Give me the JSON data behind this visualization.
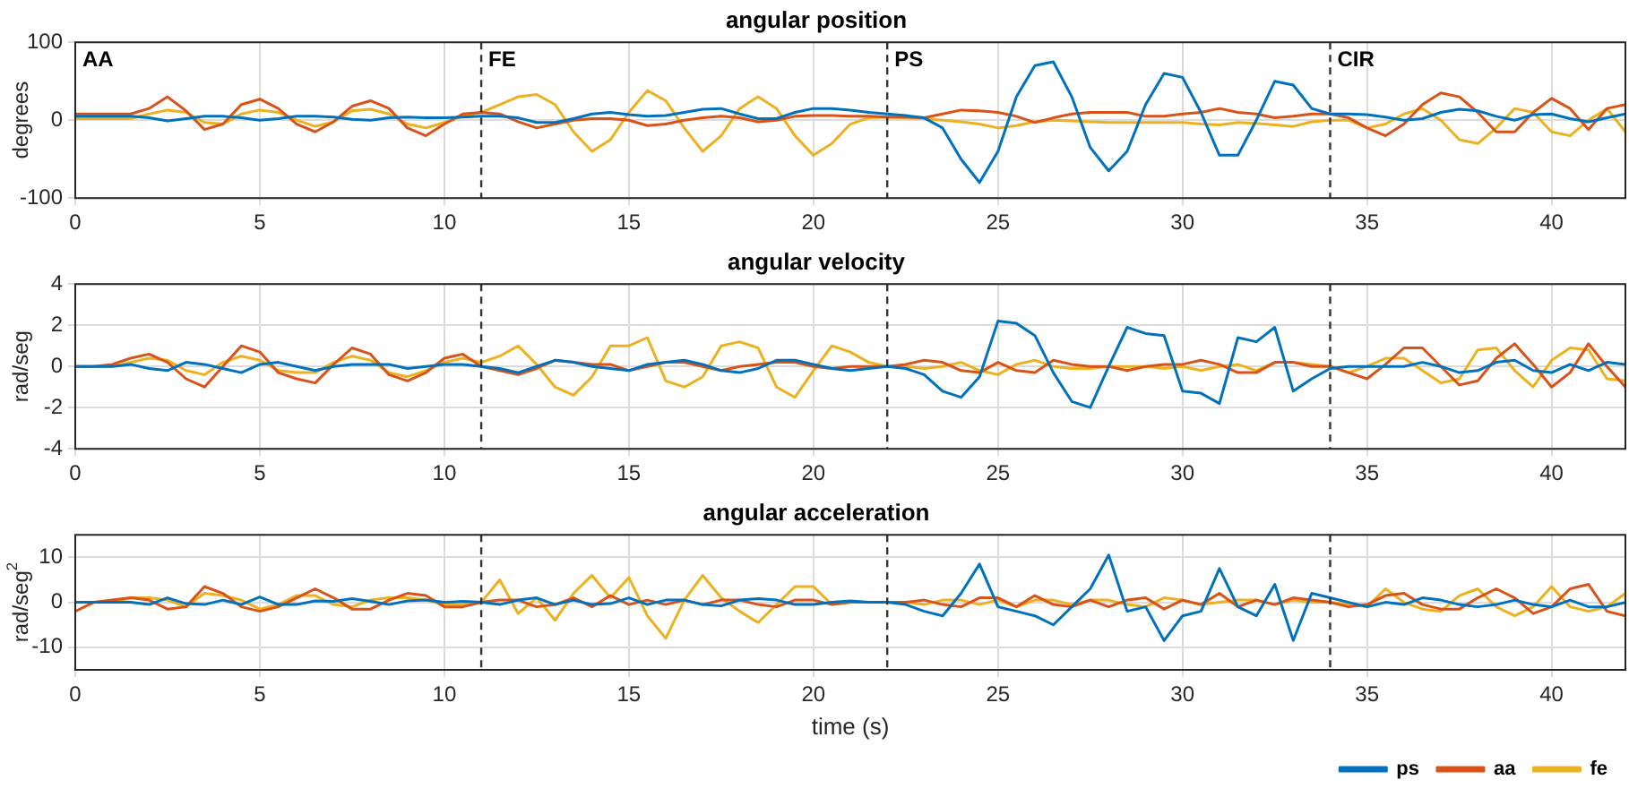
{
  "chart_data": [
    {
      "type": "line",
      "title": "angular position",
      "ylabel": "degrees",
      "marker": "none",
      "grid": true,
      "x": [
        0,
        0.5,
        1,
        1.5,
        2,
        2.5,
        3,
        3.5,
        4,
        4.5,
        5,
        5.5,
        6,
        6.5,
        7,
        7.5,
        8,
        8.5,
        9,
        9.5,
        10,
        10.5,
        11,
        11.5,
        12,
        12.5,
        13,
        13.5,
        14,
        14.5,
        15,
        15.5,
        16,
        16.5,
        17,
        17.5,
        18,
        18.5,
        19,
        19.5,
        20,
        20.5,
        21,
        21.5,
        22,
        22.5,
        23,
        23.5,
        24,
        24.5,
        25,
        25.5,
        26,
        26.5,
        27,
        27.5,
        28,
        28.5,
        29,
        29.5,
        30,
        30.5,
        31,
        31.5,
        32,
        32.5,
        33,
        33.5,
        34,
        34.5,
        35,
        35.5,
        36,
        36.5,
        37,
        37.5,
        38,
        38.5,
        39,
        39.5,
        40,
        40.5,
        41,
        41.5,
        42
      ],
      "series": [
        {
          "color": "#0072bd",
          "values": [
            5,
            5,
            5,
            5,
            3,
            -1,
            2,
            5,
            5,
            3,
            0,
            2,
            5,
            5,
            4,
            1,
            0,
            3,
            4,
            3,
            3,
            4,
            5,
            5,
            3,
            -3,
            -3,
            2,
            8,
            10,
            7,
            5,
            6,
            10,
            14,
            15,
            8,
            2,
            2,
            10,
            15,
            15,
            13,
            10,
            8,
            6,
            3,
            -10,
            -50,
            -80,
            -40,
            30,
            70,
            75,
            30,
            -35,
            -65,
            -40,
            20,
            60,
            55,
            10,
            -45,
            -45,
            0,
            50,
            45,
            15,
            8,
            8,
            7,
            4,
            0,
            2,
            10,
            14,
            12,
            5,
            0,
            7,
            8,
            2,
            -2,
            3,
            8
          ]
        },
        {
          "color": "#d95319",
          "values": [
            8,
            8,
            8,
            8,
            15,
            30,
            12,
            -12,
            -5,
            20,
            27,
            15,
            -5,
            -15,
            -2,
            18,
            25,
            15,
            -10,
            -20,
            -5,
            8,
            10,
            8,
            -2,
            -10,
            -5,
            0,
            2,
            2,
            0,
            -7,
            -5,
            0,
            3,
            5,
            3,
            -2,
            0,
            5,
            6,
            6,
            5,
            5,
            4,
            4,
            3,
            8,
            13,
            12,
            10,
            5,
            -3,
            3,
            8,
            10,
            10,
            10,
            5,
            5,
            8,
            10,
            15,
            10,
            8,
            3,
            5,
            8,
            8,
            3,
            -10,
            -20,
            -5,
            20,
            35,
            30,
            10,
            -15,
            -15,
            10,
            28,
            15,
            -12,
            15,
            20
          ]
        },
        {
          "color": "#edb120",
          "values": [
            2,
            2,
            2,
            2,
            8,
            13,
            10,
            -3,
            -5,
            8,
            13,
            10,
            0,
            -8,
            -2,
            12,
            14,
            8,
            -5,
            -10,
            -3,
            5,
            10,
            20,
            30,
            33,
            20,
            -15,
            -40,
            -25,
            10,
            38,
            25,
            -10,
            -40,
            -20,
            15,
            30,
            15,
            -20,
            -45,
            -30,
            -5,
            3,
            4,
            3,
            2,
            0,
            -2,
            -5,
            -10,
            -7,
            -2,
            0,
            -1,
            -2,
            -3,
            -3,
            -3,
            -3,
            -3,
            -5,
            -6,
            -3,
            -4,
            -6,
            -8,
            -2,
            0,
            0,
            -10,
            -5,
            8,
            15,
            0,
            -25,
            -30,
            -10,
            15,
            10,
            -15,
            -20,
            0,
            15,
            -15
          ]
        }
      ],
      "xlim": [
        0,
        42
      ],
      "xticks": [
        0,
        5,
        10,
        15,
        20,
        25,
        30,
        35,
        40
      ],
      "ylim": [
        -100,
        100
      ],
      "yticks": [
        -100,
        0,
        100
      ],
      "ref_lines": [
        {
          "axis": "x",
          "value": 11,
          "label": "FE",
          "color": "#333333",
          "line_style": "dashed"
        },
        {
          "axis": "x",
          "value": 22,
          "label": "PS",
          "color": "#333333",
          "line_style": "dashed"
        },
        {
          "axis": "x",
          "value": 34,
          "label": "CIR",
          "color": "#333333",
          "line_style": "dashed"
        }
      ],
      "annotations": [
        "AA"
      ]
    },
    {
      "type": "line",
      "title": "angular velocity",
      "ylabel": "rad/seg",
      "marker": "none",
      "grid": true,
      "x": [
        0,
        0.5,
        1,
        1.5,
        2,
        2.5,
        3,
        3.5,
        4,
        4.5,
        5,
        5.5,
        6,
        6.5,
        7,
        7.5,
        8,
        8.5,
        9,
        9.5,
        10,
        10.5,
        11,
        11.5,
        12,
        12.5,
        13,
        13.5,
        14,
        14.5,
        15,
        15.5,
        16,
        16.5,
        17,
        17.5,
        18,
        18.5,
        19,
        19.5,
        20,
        20.5,
        21,
        21.5,
        22,
        22.5,
        23,
        23.5,
        24,
        24.5,
        25,
        25.5,
        26,
        26.5,
        27,
        27.5,
        28,
        28.5,
        29,
        29.5,
        30,
        30.5,
        31,
        31.5,
        32,
        32.5,
        33,
        33.5,
        34,
        34.5,
        35,
        35.5,
        36,
        36.5,
        37,
        37.5,
        38,
        38.5,
        39,
        39.5,
        40,
        40.5,
        41,
        41.5,
        42
      ],
      "series": [
        {
          "color": "#0072bd",
          "values": [
            0,
            0,
            0,
            0.1,
            -0.1,
            -0.2,
            0.2,
            0.1,
            -0.1,
            -0.3,
            0.1,
            0.2,
            0,
            -0.2,
            0,
            0.1,
            0.1,
            0.1,
            -0.1,
            0,
            0.1,
            0.1,
            0,
            -0.1,
            -0.3,
            0,
            0.3,
            0.2,
            0,
            -0.1,
            -0.2,
            0.1,
            0.2,
            0.3,
            0.1,
            -0.2,
            -0.3,
            -0.1,
            0.3,
            0.3,
            0.1,
            -0.1,
            -0.2,
            -0.1,
            0,
            -0.1,
            -0.4,
            -1.2,
            -1.5,
            -0.5,
            2.2,
            2.1,
            1.5,
            -0.3,
            -1.7,
            -2,
            0,
            1.9,
            1.6,
            1.5,
            -1.2,
            -1.3,
            -1.8,
            1.4,
            1.2,
            1.9,
            -1.2,
            -0.6,
            -0.1,
            0,
            0,
            0,
            0,
            0.2,
            0,
            -0.3,
            -0.2,
            0.2,
            0.3,
            -0.2,
            -0.3,
            0.1,
            -0.2,
            0.2,
            0.1
          ]
        },
        {
          "color": "#d95319",
          "values": [
            0,
            0,
            0.1,
            0.4,
            0.6,
            0.2,
            -0.6,
            -1,
            0,
            1,
            0.7,
            -0.3,
            -0.6,
            -0.8,
            0.1,
            0.9,
            0.6,
            -0.4,
            -0.7,
            -0.3,
            0.4,
            0.6,
            0,
            -0.2,
            -0.4,
            -0.1,
            0.3,
            0.2,
            0.1,
            0.1,
            -0.2,
            0,
            0.2,
            0.2,
            0,
            -0.2,
            0,
            0.1,
            0.2,
            0.2,
            0,
            -0.1,
            0,
            0,
            0,
            0.1,
            0.3,
            0.2,
            -0.2,
            -0.3,
            0.2,
            -0.2,
            -0.3,
            0.3,
            0.1,
            0,
            0,
            -0.2,
            0,
            0.1,
            0.1,
            0.3,
            0.1,
            -0.3,
            -0.3,
            0.2,
            0.2,
            0,
            0,
            -0.3,
            -0.6,
            0.1,
            0.9,
            0.9,
            0,
            -0.9,
            -0.7,
            0.4,
            1.1,
            0.1,
            -1,
            -0.3,
            1.1,
            0,
            -1
          ]
        },
        {
          "color": "#edb120",
          "values": [
            0,
            0,
            0,
            0.2,
            0.4,
            0.3,
            -0.2,
            -0.4,
            0.2,
            0.5,
            0.3,
            -0.2,
            -0.3,
            -0.3,
            0.2,
            0.5,
            0.3,
            -0.3,
            -0.5,
            -0.2,
            0.2,
            0.4,
            0.2,
            0.5,
            1,
            0.1,
            -1,
            -1.4,
            -0.5,
            1,
            1,
            1.4,
            -0.7,
            -1,
            -0.5,
            1,
            1.2,
            0.9,
            -1,
            -1.5,
            -0.2,
            1,
            0.7,
            0.2,
            0,
            0,
            -0.1,
            0,
            0.2,
            -0.2,
            -0.4,
            0.1,
            0.3,
            0,
            -0.1,
            -0.1,
            0,
            0,
            0,
            -0.1,
            0,
            -0.2,
            0,
            0.1,
            -0.2,
            0.2,
            0.2,
            0.1,
            0,
            -0.3,
            0,
            0.4,
            0.4,
            -0.2,
            -0.8,
            -0.6,
            0.8,
            0.9,
            -0.2,
            -1,
            0.3,
            0.9,
            0.8,
            -0.6,
            -0.7
          ]
        }
      ],
      "xlim": [
        0,
        42
      ],
      "xticks": [
        0,
        5,
        10,
        15,
        20,
        25,
        30,
        35,
        40
      ],
      "ylim": [
        -4,
        4
      ],
      "yticks": [
        -4,
        -2,
        0,
        2,
        4
      ],
      "ref_lines": [
        {
          "axis": "x",
          "value": 11,
          "color": "#333333",
          "line_style": "dashed"
        },
        {
          "axis": "x",
          "value": 22,
          "color": "#333333",
          "line_style": "dashed"
        },
        {
          "axis": "x",
          "value": 34,
          "color": "#333333",
          "line_style": "dashed"
        }
      ]
    },
    {
      "type": "line",
      "title": "angular acceleration",
      "ylabel": "rad/seg$^{2}$",
      "xlabel": "time (s)",
      "marker": "none",
      "grid": true,
      "legend": "bottom right",
      "x": [
        0,
        0.5,
        1,
        1.5,
        2,
        2.5,
        3,
        3.5,
        4,
        4.5,
        5,
        5.5,
        6,
        6.5,
        7,
        7.5,
        8,
        8.5,
        9,
        9.5,
        10,
        10.5,
        11,
        11.5,
        12,
        12.5,
        13,
        13.5,
        14,
        14.5,
        15,
        15.5,
        16,
        16.5,
        17,
        17.5,
        18,
        18.5,
        19,
        19.5,
        20,
        20.5,
        21,
        21.5,
        22,
        22.5,
        23,
        23.5,
        24,
        24.5,
        25,
        25.5,
        26,
        26.5,
        27,
        27.5,
        28,
        28.5,
        29,
        29.5,
        30,
        30.5,
        31,
        31.5,
        32,
        32.5,
        33,
        33.5,
        34,
        34.5,
        35,
        35.5,
        36,
        36.5,
        37,
        37.5,
        38,
        38.5,
        39,
        39.5,
        40,
        40.5,
        41,
        41.5,
        42
      ],
      "series": [
        {
          "name": "ps",
          "color": "#0072bd",
          "values": [
            0,
            0,
            0,
            0,
            -0.5,
            1,
            -0.3,
            -0.5,
            0.5,
            -0.5,
            1.2,
            -0.5,
            -0.5,
            0.3,
            0.2,
            0.8,
            0.2,
            -0.5,
            0.3,
            0.5,
            0,
            0.2,
            0,
            -0.5,
            0.5,
            1,
            -0.5,
            0.5,
            -0.5,
            -0.3,
            1,
            -0.5,
            0.5,
            0.5,
            -0.5,
            -0.8,
            0.5,
            0.8,
            0.5,
            -0.5,
            -0.5,
            0,
            0.3,
            0,
            0,
            -0.5,
            -2,
            -3,
            2,
            8.5,
            -1,
            -2,
            -3,
            -5,
            -1,
            3,
            10.5,
            -2,
            -1,
            -8.5,
            -3,
            -2,
            7.5,
            -1,
            -3,
            4,
            -8.5,
            2,
            1,
            0,
            -1,
            0,
            -0.5,
            1,
            0.5,
            -0.5,
            -1,
            -0.5,
            0.5,
            -0.5,
            -1,
            0.5,
            -1,
            -1,
            0
          ]
        },
        {
          "name": "aa",
          "color": "#d95319",
          "values": [
            -2,
            0,
            0.5,
            1,
            0.5,
            -1.5,
            -1,
            3.5,
            2,
            -1,
            -2,
            -1,
            1,
            3,
            1,
            -1.5,
            -1.5,
            0.5,
            2,
            1.5,
            -1,
            -1,
            0,
            0.5,
            0.5,
            -1,
            -0.5,
            1,
            -1,
            1.5,
            -0.5,
            0.5,
            -0.5,
            0.5,
            -0.5,
            0.5,
            0.5,
            -0.5,
            -1,
            0.5,
            0.5,
            -0.5,
            0,
            0,
            0,
            0,
            0.5,
            -0.5,
            -1,
            1,
            1,
            -1,
            1.5,
            -0.5,
            -1,
            0.5,
            -1,
            0.5,
            1,
            -1.5,
            0.5,
            -0.5,
            2,
            -1,
            0.5,
            -0.5,
            1,
            0.5,
            0,
            -1,
            -0.5,
            1.5,
            2,
            -0.5,
            -1.5,
            -1.5,
            1,
            3,
            1,
            -2.5,
            -1,
            3,
            4,
            -2,
            -3
          ]
        },
        {
          "name": "fe",
          "color": "#edb120",
          "values": [
            0,
            0,
            0,
            1,
            1,
            0.5,
            -1,
            2,
            1.5,
            0.5,
            -1.5,
            -0.5,
            1.5,
            1.5,
            -0.5,
            -1,
            0.5,
            1,
            1,
            0.5,
            -0.5,
            -0.5,
            0,
            5,
            -2.5,
            1,
            -4,
            2,
            6,
            1,
            5.5,
            -3,
            -8,
            0.5,
            6,
            1,
            -2,
            -4.5,
            -0.5,
            3.5,
            3.5,
            -0.5,
            0,
            0,
            0,
            0,
            -0.5,
            0.5,
            0.5,
            -0.5,
            0.5,
            -1,
            0.5,
            0.5,
            -0.5,
            0.5,
            0.5,
            -0.5,
            -1,
            1,
            0.5,
            -0.5,
            0,
            0.5,
            0.5,
            -0.5,
            0.5,
            0,
            0,
            -0.5,
            -1,
            3,
            0,
            -1.5,
            -2,
            1.5,
            3,
            -1,
            -3,
            -1,
            3.5,
            -1,
            -2,
            -1,
            2
          ]
        }
      ],
      "xlim": [
        0,
        42
      ],
      "xticks": [
        0,
        5,
        10,
        15,
        20,
        25,
        30,
        35,
        40
      ],
      "ylim": [
        -15,
        15
      ],
      "yticks": [
        -10,
        0,
        10
      ],
      "ref_lines": [
        {
          "axis": "x",
          "value": 11,
          "color": "#333333",
          "line_style": "dashed"
        },
        {
          "axis": "x",
          "value": 22,
          "color": "#333333",
          "line_style": "dashed"
        },
        {
          "axis": "x",
          "value": 34,
          "color": "#333333",
          "line_style": "dashed"
        }
      ]
    }
  ]
}
